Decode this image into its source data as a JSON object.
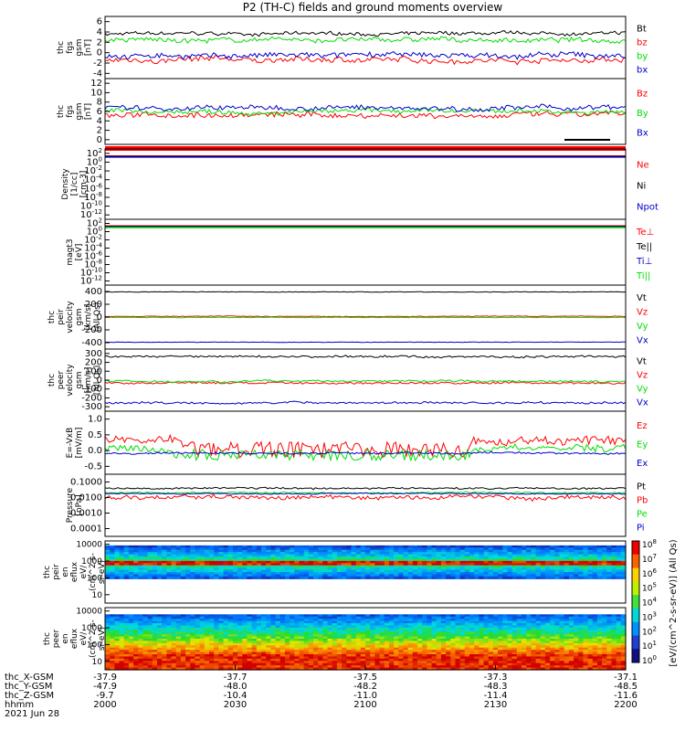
{
  "title": "P2 (TH-C) fields and ground moments overview",
  "colors": {
    "black": "#000000",
    "red": "#ff0000",
    "green": "#00dd00",
    "blue": "#0000cc"
  },
  "chart_data": [
    {
      "type": "line",
      "panel": "fgs_gsm",
      "ylabel": [
        "thc",
        "fgs",
        "gsm",
        "[nT]"
      ],
      "yticks": [
        "6",
        "4",
        "2",
        "0",
        "-2",
        "-4"
      ],
      "ylim": [
        -4,
        6
      ],
      "series": [
        {
          "name": "Bt",
          "color": "black",
          "base": 3.2,
          "noise": 0.5
        },
        {
          "name": "bz",
          "color": "red",
          "base": -1.0,
          "noise": 0.8
        },
        {
          "name": "by",
          "color": "green",
          "base": 2.2,
          "noise": 0.7
        },
        {
          "name": "bx",
          "color": "blue",
          "base": -0.3,
          "noise": 0.8
        }
      ]
    },
    {
      "type": "line",
      "panel": "fgs_gsm_abs",
      "ylabel": [
        "thc",
        "fgs",
        "gsm",
        "[nT]"
      ],
      "yticks": [
        "12",
        "10",
        "8",
        "6",
        "4",
        "2",
        "0"
      ],
      "ylim": [
        -1,
        12
      ],
      "series": [
        {
          "name": "Bz",
          "color": "red",
          "base": 4.8,
          "noise": 1.0
        },
        {
          "name": "By",
          "color": "green",
          "base": 5.5,
          "noise": 0.8
        },
        {
          "name": "Bx",
          "color": "blue",
          "base": 6.2,
          "noise": 0.9
        }
      ]
    },
    {
      "type": "line",
      "panel": "density",
      "ylabel": [
        "Density",
        "[1/cc]",
        "[cm-3]"
      ],
      "yticks": [
        "10^2",
        "10^0",
        "10^-2",
        "10^-4",
        "10^-6",
        "10^-8",
        "10^-10",
        "10^-12"
      ],
      "ylim": [
        -13,
        2
      ],
      "series": [
        {
          "name": "Ne",
          "color": "red"
        },
        {
          "name": "Ni",
          "color": "black"
        },
        {
          "name": "Npot",
          "color": "blue"
        }
      ]
    },
    {
      "type": "line",
      "panel": "temperature",
      "ylabel": [
        "magt3",
        "[eV]"
      ],
      "yticks": [
        "10^2",
        "10^0",
        "10^-2",
        "10^-4",
        "10^-6",
        "10^-8",
        "10^-10",
        "10^-12"
      ],
      "ylim": [
        -13,
        2
      ],
      "series": [
        {
          "name": "Te⊥",
          "color": "red"
        },
        {
          "name": "Te||",
          "color": "black"
        },
        {
          "name": "Ti⊥",
          "color": "blue"
        },
        {
          "name": "Ti||",
          "color": "green"
        }
      ]
    },
    {
      "type": "line",
      "panel": "peir_velocity",
      "ylabel": [
        "thc",
        "peir",
        "velocity",
        "gsm",
        "[km/s]",
        "(All Qs)"
      ],
      "yticks": [
        "400",
        "200",
        "0",
        "-200",
        "-400"
      ],
      "ylim": [
        -420,
        420
      ],
      "series": [
        {
          "name": "Vt",
          "color": "black",
          "base": 330,
          "noise": 6
        },
        {
          "name": "Vz",
          "color": "red",
          "base": 10,
          "noise": 8
        },
        {
          "name": "Vy",
          "color": "green",
          "base": -5,
          "noise": 6
        },
        {
          "name": "Vx",
          "color": "blue",
          "base": -330,
          "noise": 5
        }
      ]
    },
    {
      "type": "line",
      "panel": "peer_velocity",
      "ylabel": [
        "thc",
        "peer",
        "velocity",
        "gsm",
        "[km/s]",
        "(All Qs)"
      ],
      "yticks": [
        "300",
        "200",
        "100",
        "0",
        "-100",
        "-200",
        "-300"
      ],
      "ylim": [
        -330,
        330
      ],
      "series": [
        {
          "name": "Vt",
          "color": "black",
          "base": 250,
          "noise": 20
        },
        {
          "name": "Vz",
          "color": "red",
          "base": -30,
          "noise": 20
        },
        {
          "name": "Vy",
          "color": "green",
          "base": -10,
          "noise": 20
        },
        {
          "name": "Vx",
          "color": "blue",
          "base": -240,
          "noise": 20
        }
      ]
    },
    {
      "type": "line",
      "panel": "efield",
      "ylabel": [
        "E=-VxB",
        "[mV/m]"
      ],
      "yticks": [
        "1.0",
        "0.5",
        "0.0",
        "-0.5"
      ],
      "ylim": [
        -0.6,
        1.35
      ],
      "series": [
        {
          "name": "Ez",
          "color": "red",
          "base": 0.45,
          "noise": 0.25
        },
        {
          "name": "Ey",
          "color": "green",
          "base": 0.2,
          "noise": 0.2
        },
        {
          "name": "Ex",
          "color": "blue",
          "base": 0.05,
          "noise": 0.05
        }
      ]
    },
    {
      "type": "line",
      "panel": "pressure",
      "ylabel": [
        "Pressure",
        "[nPa]"
      ],
      "yticks": [
        "0.1000",
        "0.0100",
        "0.0010",
        "0.0001"
      ],
      "ylim": [
        -4.1,
        -0.9
      ],
      "series": [
        {
          "name": "Pt",
          "color": "black",
          "base": -1.62,
          "noise": 0.08
        },
        {
          "name": "Pb",
          "color": "red",
          "base": -2.1,
          "noise": 0.2
        },
        {
          "name": "Pe",
          "color": "green",
          "base": -1.85,
          "noise": 0.06
        },
        {
          "name": "Pi",
          "color": "blue",
          "base": -1.9,
          "noise": 0.05
        }
      ]
    },
    {
      "type": "heatmap",
      "panel": "peir_spec",
      "ylabel": [
        "thc",
        "peir",
        "en",
        "eflux",
        "eV/",
        "(cm^2-s-",
        "sr-eV)"
      ],
      "yticks": [
        "10000",
        "1000",
        "100",
        "10"
      ],
      "ylim": [
        0.5,
        4.2
      ]
    },
    {
      "type": "heatmap",
      "panel": "peer_spec",
      "ylabel": [
        "thc",
        "peer",
        "en",
        "eflux",
        "eV/",
        "(cm^2-s-",
        "sr-eV)"
      ],
      "yticks": [
        "10000",
        "1000",
        "100",
        "10"
      ],
      "ylim": [
        0.5,
        4.2
      ]
    }
  ],
  "colorbar": {
    "ticks": [
      "10^8",
      "10^7",
      "10^6",
      "10^5",
      "10^4",
      "10^3",
      "10^2",
      "10^1",
      "10^0"
    ],
    "label": "[eV/(cm^2-s-sr-eV)] (All Qs)"
  },
  "x_axis": {
    "row_labels": [
      "thc_X-GSM",
      "thc_Y-GSM",
      "thc_Z-GSM",
      "hhmm",
      "2021 Jun 28"
    ],
    "ticks": [
      {
        "x": "-37.9",
        "y": "-47.9",
        "z": "-9.7",
        "t": "2000"
      },
      {
        "x": "-37.7",
        "y": "-48.0",
        "z": "-10.4",
        "t": "2030"
      },
      {
        "x": "-37.5",
        "y": "-48.2",
        "z": "-11.0",
        "t": "2100"
      },
      {
        "x": "-37.3",
        "y": "-48.3",
        "z": "-11.4",
        "t": "2130"
      },
      {
        "x": "-37.1",
        "y": "-48.5",
        "z": "-11.6",
        "t": "2200"
      }
    ]
  }
}
